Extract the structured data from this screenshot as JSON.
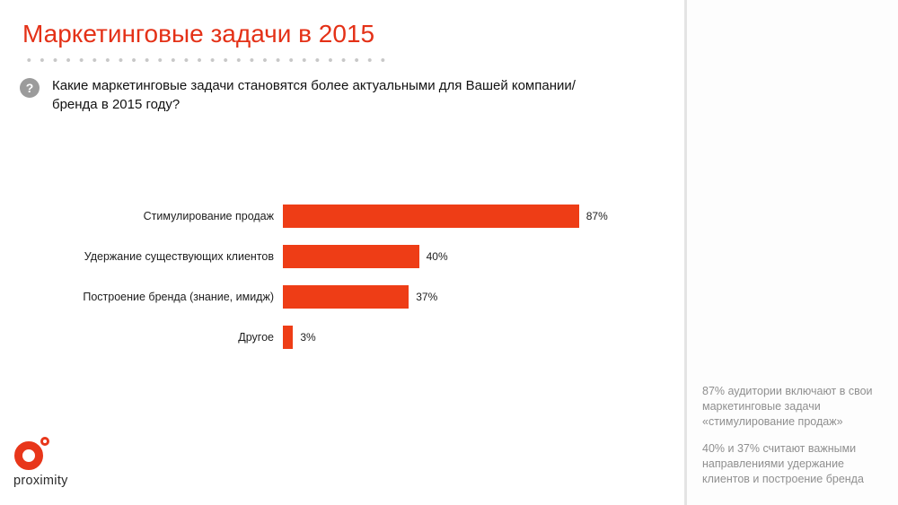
{
  "slide": {
    "title": "Маркетинговые задачи в 2015",
    "question": "Какие маркетинговые задачи становятся более актуальными для Вашей компании/бренда в 2015 году?"
  },
  "icons": {
    "question_mark": "?"
  },
  "chart_data": {
    "type": "bar",
    "orientation": "horizontal",
    "title": "Маркетинговые задачи в 2015",
    "categories": [
      "Стимулирование продаж",
      "Удержание существующих клиентов",
      "Построение бренда (знание, имидж)",
      "Другое"
    ],
    "values": [
      87,
      40,
      37,
      3
    ],
    "value_labels": [
      "87%",
      "40%",
      "37%",
      "3%"
    ],
    "xlim": [
      0,
      100
    ],
    "grid": false,
    "legend": "none",
    "bar_color": "#ee3d16"
  },
  "sidebar": {
    "notes": [
      "87% аудитории включают в свои маркетинговые задачи «стимулирование продаж»",
      "40% и 37% считают важными направлениями удержание клиентов  и построение бренда"
    ]
  },
  "logo": {
    "text": "proximity"
  },
  "colors": {
    "title_red": "#e43117",
    "bar_red": "#ee3d16",
    "note_gray": "#8f8f8f",
    "icon_gray": "#9b9b9b"
  }
}
